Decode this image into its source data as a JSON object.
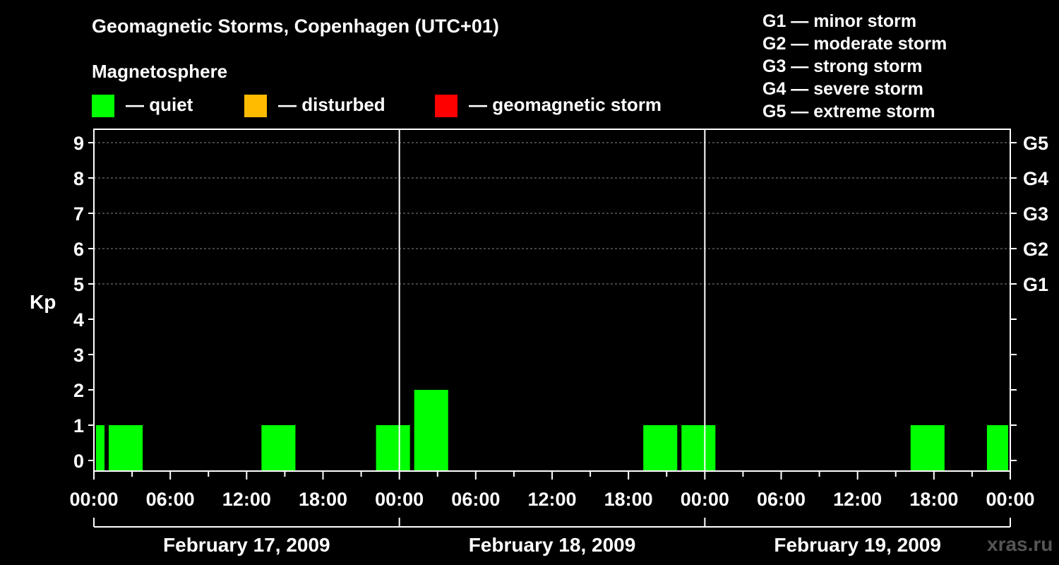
{
  "title": "Geomagnetic Storms, Copenhagen (UTC+01)",
  "subtitle": "Magnetosphere",
  "legend": [
    {
      "label": "— quiet",
      "color": "#00ff00"
    },
    {
      "label": "— disturbed",
      "color": "#ffbb00"
    },
    {
      "label": "— geomagnetic storm",
      "color": "#ff0000"
    }
  ],
  "storm_scale": [
    "G1 — minor storm",
    "G2 — moderate storm",
    "G3 — strong storm",
    "G4 — severe storm",
    "G5 — extreme storm"
  ],
  "watermark": "xras.ru",
  "chart_data": {
    "type": "bar",
    "title": "Geomagnetic Storms, Copenhagen (UTC+01)",
    "ylabel": "Kp",
    "ylim": [
      0,
      9
    ],
    "yticks": [
      "0",
      "1",
      "2",
      "3",
      "4",
      "5",
      "6",
      "7",
      "8",
      "9"
    ],
    "right_axis": [
      {
        "kp": 5,
        "label": "G1"
      },
      {
        "kp": 6,
        "label": "G2"
      },
      {
        "kp": 7,
        "label": "G3"
      },
      {
        "kp": 8,
        "label": "G4"
      },
      {
        "kp": 9,
        "label": "G5"
      }
    ],
    "x_range_hours": [
      0,
      72
    ],
    "x_tick_labels": [
      "00:00",
      "06:00",
      "12:00",
      "18:00",
      "00:00",
      "06:00",
      "12:00",
      "18:00",
      "00:00",
      "06:00",
      "12:00",
      "18:00",
      "00:00"
    ],
    "days": [
      "February 17, 2009",
      "February 18, 2009",
      "February 19, 2009"
    ],
    "bars": [
      {
        "start": 0,
        "end": 1,
        "kp": 1,
        "status": "quiet"
      },
      {
        "start": 1,
        "end": 4,
        "kp": 1,
        "status": "quiet"
      },
      {
        "start": 13,
        "end": 16,
        "kp": 1,
        "status": "quiet"
      },
      {
        "start": 22,
        "end": 25,
        "kp": 1,
        "status": "quiet"
      },
      {
        "start": 25,
        "end": 28,
        "kp": 2,
        "status": "quiet"
      },
      {
        "start": 43,
        "end": 46,
        "kp": 1,
        "status": "quiet"
      },
      {
        "start": 46,
        "end": 49,
        "kp": 1,
        "status": "quiet"
      },
      {
        "start": 64,
        "end": 67,
        "kp": 1,
        "status": "quiet"
      },
      {
        "start": 70,
        "end": 72,
        "kp": 1,
        "status": "quiet"
      }
    ]
  }
}
